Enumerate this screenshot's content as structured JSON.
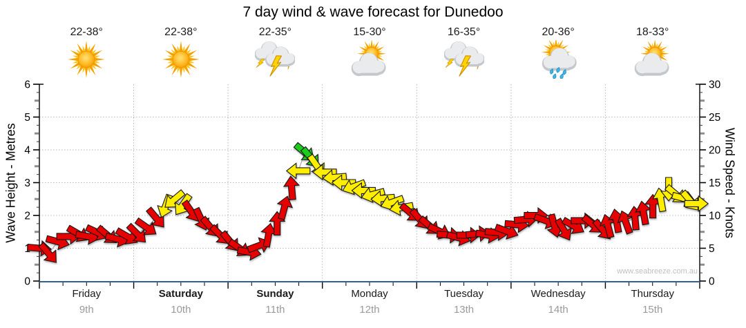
{
  "title": "7 day wind & wave forecast for Dunedoo",
  "watermark": "www.seabreeze.com.au",
  "days": [
    {
      "name": "Friday",
      "date": "9th",
      "temp": "22-38°",
      "icon": "sunny",
      "bold": false
    },
    {
      "name": "Saturday",
      "date": "10th",
      "temp": "22-38°",
      "icon": "sunny",
      "bold": true
    },
    {
      "name": "Sunday",
      "date": "11th",
      "temp": "22-35°",
      "icon": "thunderstorm",
      "bold": true
    },
    {
      "name": "Monday",
      "date": "12th",
      "temp": "15-30°",
      "icon": "partly-cloudy",
      "bold": false
    },
    {
      "name": "Tuesday",
      "date": "13th",
      "temp": "16-35°",
      "icon": "thunderstorm",
      "bold": false
    },
    {
      "name": "Wednesday",
      "date": "14th",
      "temp": "20-36°",
      "icon": "rain-showers",
      "bold": false
    },
    {
      "name": "Thursday",
      "date": "15th",
      "temp": "18-33°",
      "icon": "partly-cloudy",
      "bold": false
    }
  ],
  "axes": {
    "wave": {
      "label": "Wave Height - Metres",
      "min": 0,
      "max": 6,
      "major_ticks": [
        0,
        1,
        2,
        3,
        4,
        5,
        6
      ]
    },
    "wind": {
      "label": "Wind Speed - Knots",
      "min": 0,
      "max": 30,
      "major_ticks": [
        0,
        5,
        10,
        15,
        20,
        25,
        30
      ]
    }
  },
  "chart_data": {
    "type": "scatter",
    "style": "wind-direction-arrows",
    "title": "7 day wind & wave forecast for Dunedoo",
    "categories": [
      "Friday 9th",
      "Saturday 10th",
      "Sunday 11th",
      "Monday 12th",
      "Tuesday 13th",
      "Wednesday 14th",
      "Thursday 15th"
    ],
    "wave_axis": {
      "label": "Wave Height - Metres",
      "range": [
        0,
        6
      ]
    },
    "wind_axis": {
      "label": "Wind Speed - Knots",
      "range": [
        0,
        30
      ]
    },
    "grid": "dotted horizontal at 1-5 m and vertical at day boundaries",
    "arrow_colors": {
      "r": "#e60505",
      "y": "#ffee00",
      "g": "#1ecb1e"
    },
    "arrow_format": [
      "x_fraction_of_week",
      "wind_speed_knots",
      "direction_deg_cw_from_up",
      "color"
    ],
    "arrows": [
      [
        0.0,
        5.0,
        95,
        "r"
      ],
      [
        0.014,
        4.2,
        140,
        "r"
      ],
      [
        0.028,
        6.0,
        105,
        "r"
      ],
      [
        0.044,
        6.8,
        90,
        "r"
      ],
      [
        0.059,
        7.2,
        120,
        "r"
      ],
      [
        0.073,
        6.8,
        100,
        "r"
      ],
      [
        0.088,
        7.4,
        115,
        "r"
      ],
      [
        0.103,
        7.0,
        130,
        "r"
      ],
      [
        0.118,
        6.4,
        105,
        "r"
      ],
      [
        0.133,
        6.8,
        120,
        "r"
      ],
      [
        0.148,
        7.2,
        135,
        "r"
      ],
      [
        0.162,
        8.2,
        125,
        "r"
      ],
      [
        0.177,
        9.6,
        140,
        "r"
      ],
      [
        0.191,
        11.4,
        200,
        "y"
      ],
      [
        0.204,
        12.4,
        230,
        "y"
      ],
      [
        0.217,
        11.6,
        215,
        "y"
      ],
      [
        0.23,
        10.6,
        145,
        "r"
      ],
      [
        0.245,
        9.4,
        155,
        "r"
      ],
      [
        0.259,
        8.2,
        140,
        "r"
      ],
      [
        0.274,
        7.0,
        135,
        "r"
      ],
      [
        0.289,
        6.0,
        140,
        "r"
      ],
      [
        0.303,
        5.0,
        125,
        "r"
      ],
      [
        0.318,
        4.4,
        100,
        "r"
      ],
      [
        0.333,
        5.4,
        70,
        "r"
      ],
      [
        0.347,
        7.0,
        10,
        "r"
      ],
      [
        0.36,
        8.8,
        0,
        "r"
      ],
      [
        0.371,
        11.2,
        15,
        "r"
      ],
      [
        0.382,
        14.2,
        355,
        "r"
      ],
      [
        0.392,
        16.8,
        270,
        "y"
      ],
      [
        0.402,
        19.6,
        130,
        "g"
      ],
      [
        0.411,
        18.8,
        140,
        "g"
      ],
      [
        0.42,
        17.6,
        145,
        "y"
      ],
      [
        0.432,
        16.6,
        270,
        "y"
      ],
      [
        0.447,
        15.8,
        265,
        "y"
      ],
      [
        0.461,
        15.0,
        270,
        "y"
      ],
      [
        0.476,
        14.4,
        250,
        "y"
      ],
      [
        0.491,
        13.8,
        270,
        "y"
      ],
      [
        0.505,
        13.2,
        255,
        "y"
      ],
      [
        0.52,
        12.6,
        265,
        "y"
      ],
      [
        0.534,
        12.0,
        250,
        "y"
      ],
      [
        0.548,
        11.2,
        260,
        "y"
      ],
      [
        0.562,
        10.4,
        130,
        "r"
      ],
      [
        0.576,
        9.4,
        140,
        "r"
      ],
      [
        0.591,
        8.4,
        130,
        "r"
      ],
      [
        0.606,
        7.6,
        115,
        "r"
      ],
      [
        0.62,
        7.0,
        95,
        "r"
      ],
      [
        0.635,
        6.6,
        105,
        "r"
      ],
      [
        0.65,
        7.0,
        90,
        "r"
      ],
      [
        0.664,
        7.2,
        85,
        "r"
      ],
      [
        0.679,
        7.0,
        100,
        "r"
      ],
      [
        0.693,
        7.4,
        95,
        "r"
      ],
      [
        0.708,
        7.6,
        110,
        "r"
      ],
      [
        0.723,
        8.6,
        95,
        "r"
      ],
      [
        0.737,
        9.4,
        85,
        "r"
      ],
      [
        0.752,
        10.0,
        90,
        "r"
      ],
      [
        0.767,
        9.2,
        110,
        "r"
      ],
      [
        0.78,
        8.4,
        165,
        "r"
      ],
      [
        0.794,
        7.8,
        150,
        "r"
      ],
      [
        0.809,
        8.4,
        120,
        "r"
      ],
      [
        0.823,
        9.2,
        90,
        "r"
      ],
      [
        0.838,
        8.6,
        130,
        "r"
      ],
      [
        0.853,
        7.8,
        140,
        "r"
      ],
      [
        0.861,
        8.4,
        345,
        "r"
      ],
      [
        0.874,
        9.2,
        350,
        "r"
      ],
      [
        0.888,
        9.0,
        340,
        "r"
      ],
      [
        0.902,
        9.6,
        355,
        "r"
      ],
      [
        0.915,
        10.4,
        350,
        "r"
      ],
      [
        0.929,
        11.4,
        0,
        "r"
      ],
      [
        0.941,
        12.4,
        350,
        "y"
      ],
      [
        0.953,
        14.0,
        180,
        "y"
      ],
      [
        0.964,
        13.2,
        130,
        "y"
      ],
      [
        0.976,
        12.6,
        105,
        "y"
      ],
      [
        0.986,
        12.2,
        140,
        "y"
      ],
      [
        0.995,
        11.8,
        90,
        "y"
      ]
    ]
  }
}
